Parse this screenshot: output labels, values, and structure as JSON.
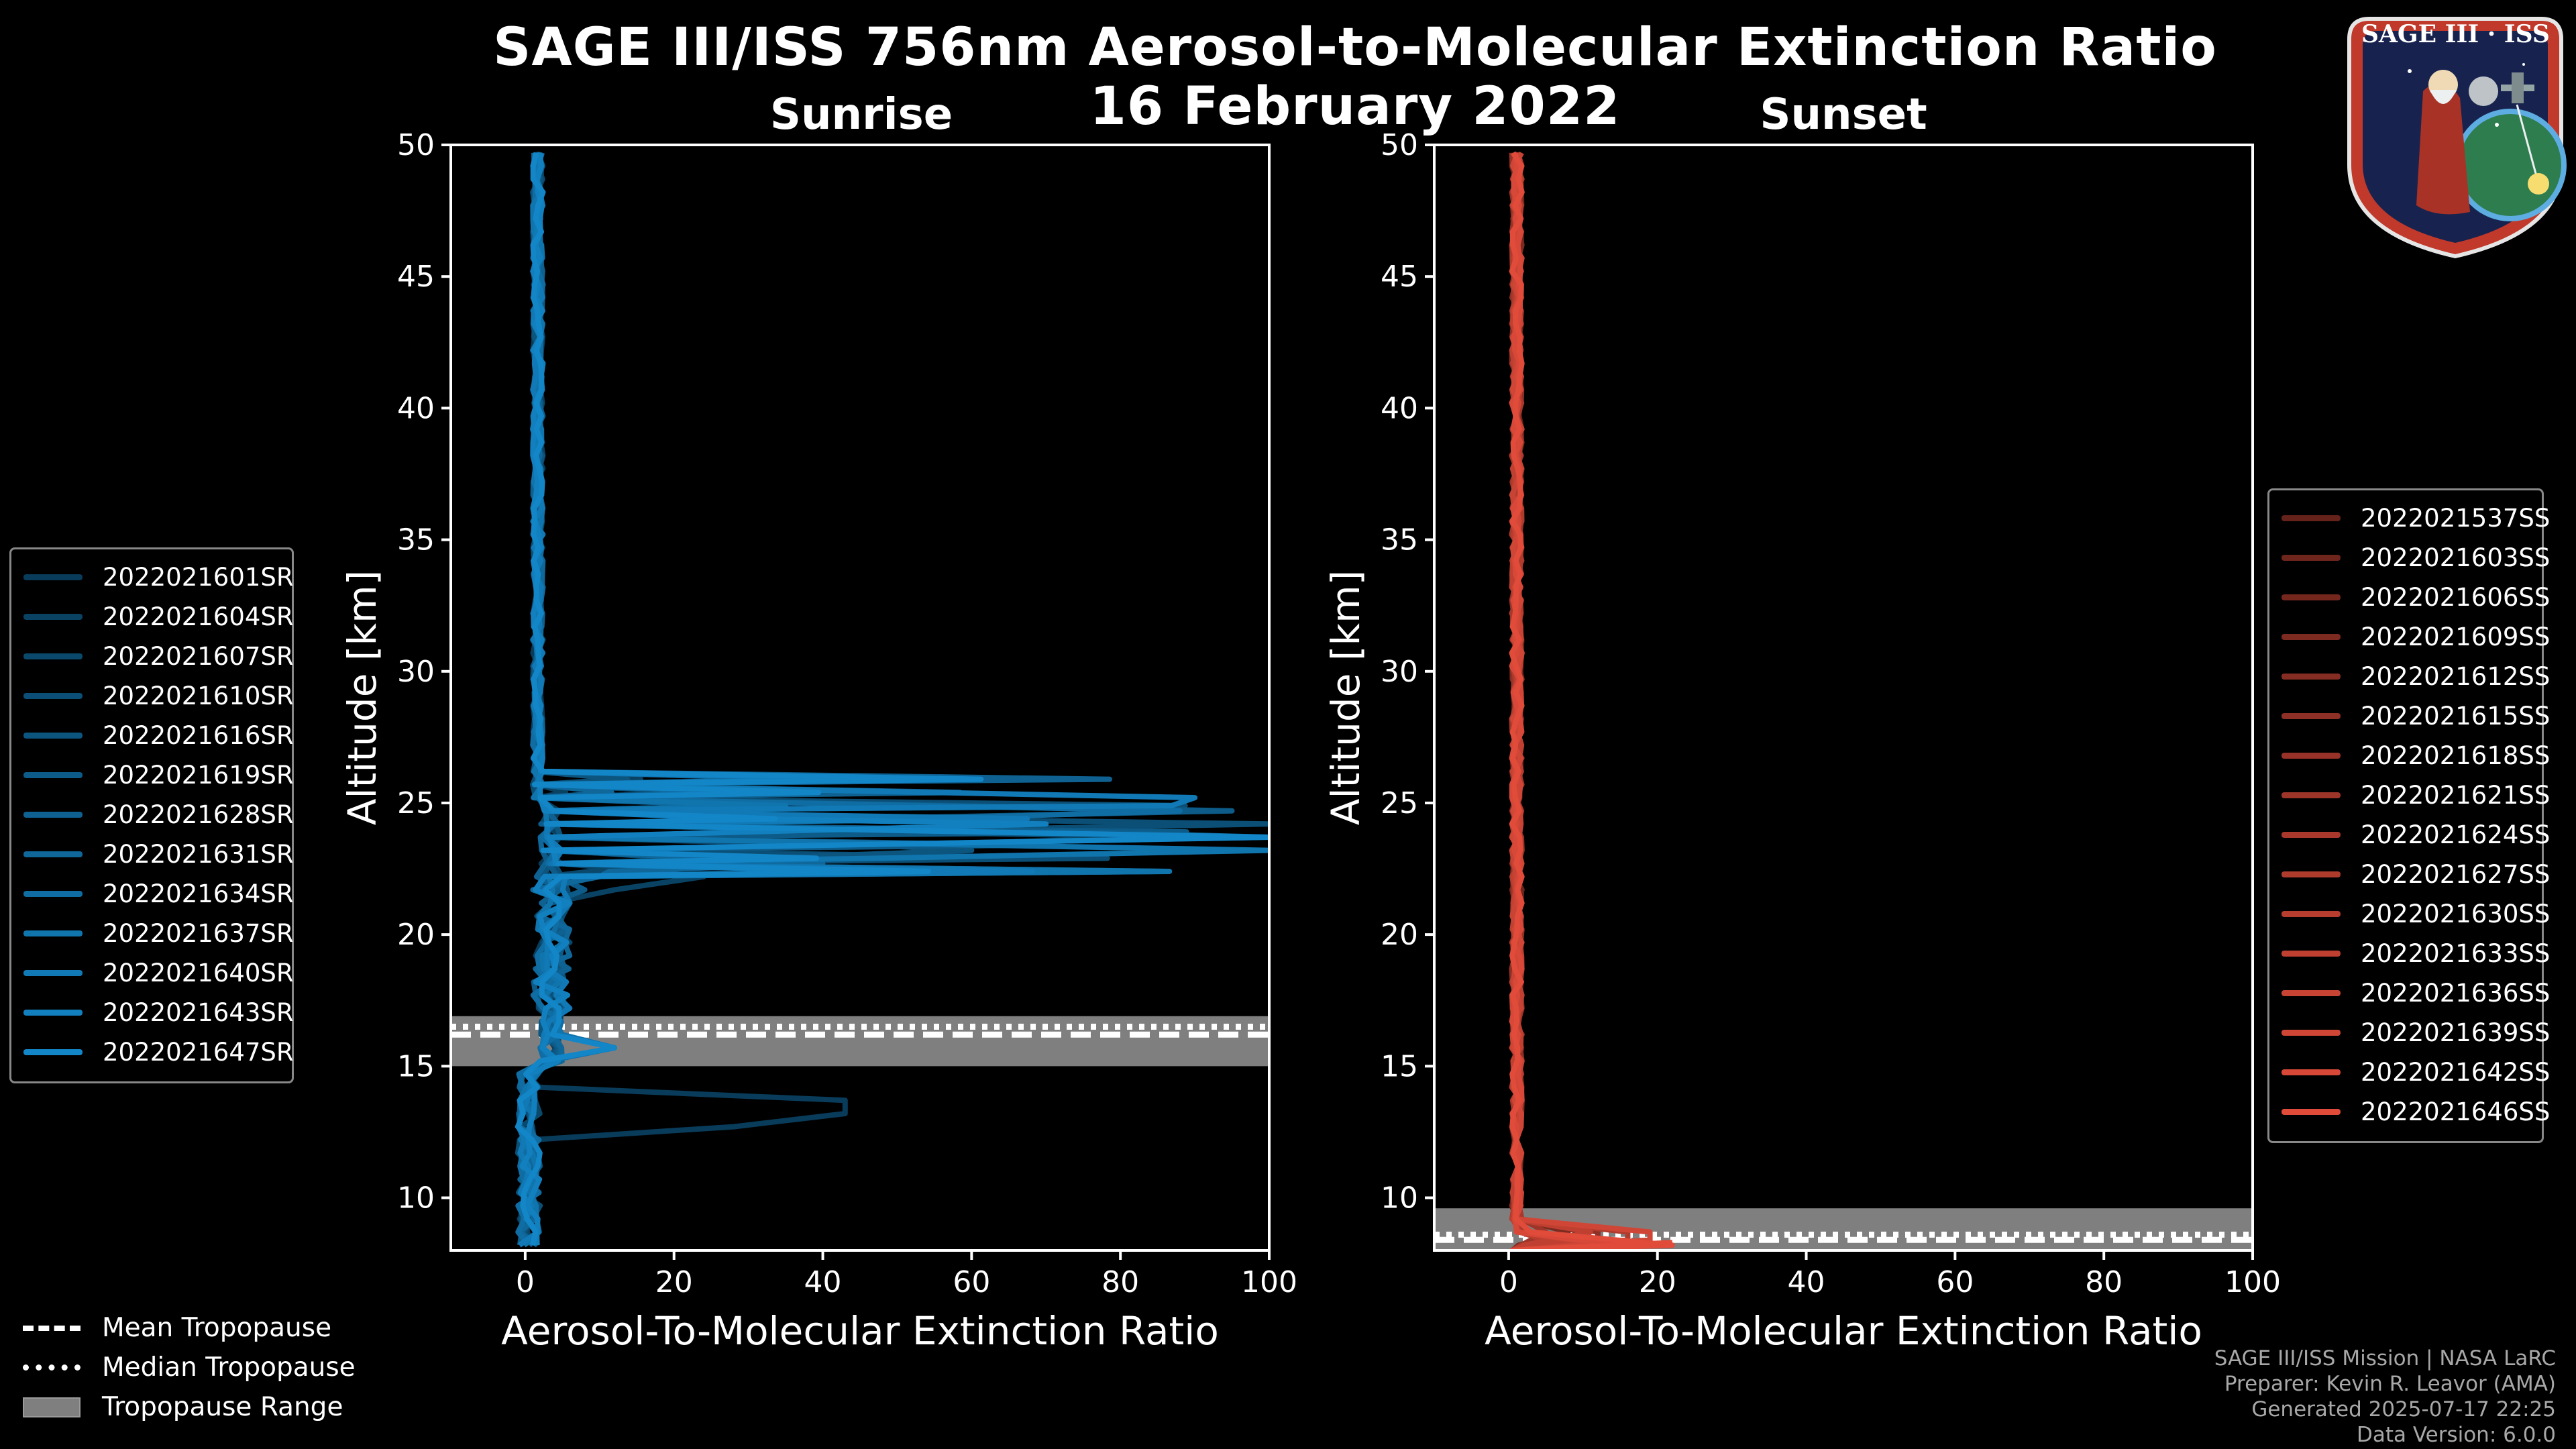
{
  "header": {
    "title_line1": "SAGE III/ISS 756nm Aerosol-to-Molecular Extinction Ratio",
    "title_line2": "16 February 2022"
  },
  "logo": {
    "label": "SAGE III · ISS"
  },
  "credits": {
    "line1": "SAGE III/ISS Mission | NASA LaRC",
    "line2": "Preparer: Kevin R. Leavor (AMA)",
    "line3": "Generated 2025-07-17 22:25",
    "line4": "Data Version: 6.0.0"
  },
  "trop_legend": {
    "mean": "Mean Tropopause",
    "median": "Median Tropopause",
    "range": "Tropopause Range"
  },
  "colors": {
    "background": "#000000",
    "sunrise_series": "#1386c8",
    "sunset_series": "#e04b3a",
    "tropopause_band": "#7f7f7f"
  },
  "chart_data": [
    {
      "type": "line",
      "title": "Sunrise",
      "xlabel": "Aerosol-To-Molecular Extinction Ratio",
      "ylabel": "Altitude [km]",
      "xlim": [
        -10,
        100
      ],
      "ylim": [
        8,
        50
      ],
      "xticks": [
        "0",
        "20",
        "40",
        "60",
        "80",
        "100"
      ],
      "yticks": [
        "10",
        "15",
        "20",
        "25",
        "30",
        "35",
        "40",
        "45",
        "50"
      ],
      "tropopause": {
        "mean": 16.2,
        "median": 16.5,
        "range": [
          15.0,
          16.9
        ]
      },
      "legend": [
        "2022021601SR",
        "2022021604SR",
        "2022021607SR",
        "2022021610SR",
        "2022021616SR",
        "2022021619SR",
        "2022021628SR",
        "2022021631SR",
        "2022021634SR",
        "2022021637SR",
        "2022021640SR",
        "2022021643SR",
        "2022021647SR"
      ],
      "series": [
        {
          "name": "2022021601SR",
          "peak_alt": 13.4,
          "peak_val": 43,
          "spikes": [
            [
              12.5,
              28
            ],
            [
              13.6,
              30
            ]
          ]
        },
        {
          "name": "2022021604SR",
          "peak_alt": 22.4,
          "peak_val": 24,
          "spikes": [
            [
              21.5,
              12
            ],
            [
              19.5,
              6
            ]
          ]
        },
        {
          "name": "2022021607SR",
          "peak_alt": 23.5,
          "peak_val": 85,
          "spikes": [
            [
              22.8,
              18
            ]
          ]
        },
        {
          "name": "2022021610SR",
          "peak_alt": 24.1,
          "peak_val": 100,
          "spikes": [
            [
              20.5,
              5
            ]
          ]
        },
        {
          "name": "2022021616SR",
          "peak_alt": 23.0,
          "peak_val": 60,
          "spikes": [
            [
              17.5,
              4
            ]
          ]
        },
        {
          "name": "2022021619SR",
          "peak_alt": 24.5,
          "peak_val": 95,
          "spikes": [
            [
              21.8,
              8
            ]
          ]
        },
        {
          "name": "2022021628SR",
          "peak_alt": 23.8,
          "peak_val": 100,
          "spikes": [
            [
              19.0,
              3
            ]
          ]
        },
        {
          "name": "2022021631SR",
          "peak_alt": 22.9,
          "peak_val": 40,
          "spikes": [
            [
              22.0,
              10
            ]
          ]
        },
        {
          "name": "2022021634SR",
          "peak_alt": 24.7,
          "peak_val": 88,
          "spikes": [
            [
              20.0,
              4
            ]
          ]
        },
        {
          "name": "2022021637SR",
          "peak_alt": 23.3,
          "peak_val": 100,
          "spikes": [
            [
              15.5,
              12
            ]
          ]
        },
        {
          "name": "2022021640SR",
          "peak_alt": 25.0,
          "peak_val": 90,
          "spikes": [
            [
              21.0,
              6
            ]
          ]
        },
        {
          "name": "2022021643SR",
          "peak_alt": 24.2,
          "peak_val": 70,
          "spikes": [
            [
              18.5,
              4
            ]
          ]
        },
        {
          "name": "2022021647SR",
          "peak_alt": 23.6,
          "peak_val": 100,
          "spikes": [
            [
              15.5,
              12
            ]
          ]
        }
      ]
    },
    {
      "type": "line",
      "title": "Sunset",
      "xlabel": "Aerosol-To-Molecular Extinction Ratio",
      "ylabel": "Altitude [km]",
      "xlim": [
        -10,
        100
      ],
      "ylim": [
        8,
        50
      ],
      "xticks": [
        "0",
        "20",
        "40",
        "60",
        "80",
        "100"
      ],
      "yticks": [
        "10",
        "15",
        "20",
        "25",
        "30",
        "35",
        "40",
        "45",
        "50"
      ],
      "tropopause": {
        "mean": 8.4,
        "median": 8.6,
        "range": [
          8.0,
          9.6
        ]
      },
      "legend": [
        "2022021537SS",
        "2022021603SS",
        "2022021606SS",
        "2022021609SS",
        "2022021612SS",
        "2022021615SS",
        "2022021618SS",
        "2022021621SS",
        "2022021624SS",
        "2022021627SS",
        "2022021630SS",
        "2022021633SS",
        "2022021636SS",
        "2022021639SS",
        "2022021642SS",
        "2022021646SS"
      ],
      "series": [
        {
          "name": "2022021537SS",
          "peak_alt": 8.3,
          "peak_val": 6,
          "spikes": []
        },
        {
          "name": "2022021603SS",
          "peak_alt": 8.4,
          "peak_val": 10,
          "spikes": []
        },
        {
          "name": "2022021606SS",
          "peak_alt": 8.2,
          "peak_val": 14,
          "spikes": []
        },
        {
          "name": "2022021609SS",
          "peak_alt": 8.5,
          "peak_val": 8,
          "spikes": []
        },
        {
          "name": "2022021612SS",
          "peak_alt": 8.3,
          "peak_val": 18,
          "spikes": []
        },
        {
          "name": "2022021615SS",
          "peak_alt": 8.4,
          "peak_val": 12,
          "spikes": []
        },
        {
          "name": "2022021618SS",
          "peak_alt": 8.2,
          "peak_val": 20,
          "spikes": []
        },
        {
          "name": "2022021621SS",
          "peak_alt": 8.6,
          "peak_val": 5,
          "spikes": []
        },
        {
          "name": "2022021624SS",
          "peak_alt": 8.3,
          "peak_val": 9,
          "spikes": []
        },
        {
          "name": "2022021627SS",
          "peak_alt": 8.4,
          "peak_val": 16,
          "spikes": []
        },
        {
          "name": "2022021630SS",
          "peak_alt": 8.2,
          "peak_val": 7,
          "spikes": []
        },
        {
          "name": "2022021633SS",
          "peak_alt": 8.5,
          "peak_val": 11,
          "spikes": []
        },
        {
          "name": "2022021636SS",
          "peak_alt": 8.3,
          "peak_val": 13,
          "spikes": []
        },
        {
          "name": "2022021639SS",
          "peak_alt": 8.4,
          "peak_val": 19,
          "spikes": []
        },
        {
          "name": "2022021642SS",
          "peak_alt": 8.2,
          "peak_val": 15,
          "spikes": []
        },
        {
          "name": "2022021646SS",
          "peak_alt": 8.3,
          "peak_val": 22,
          "spikes": []
        }
      ]
    }
  ]
}
